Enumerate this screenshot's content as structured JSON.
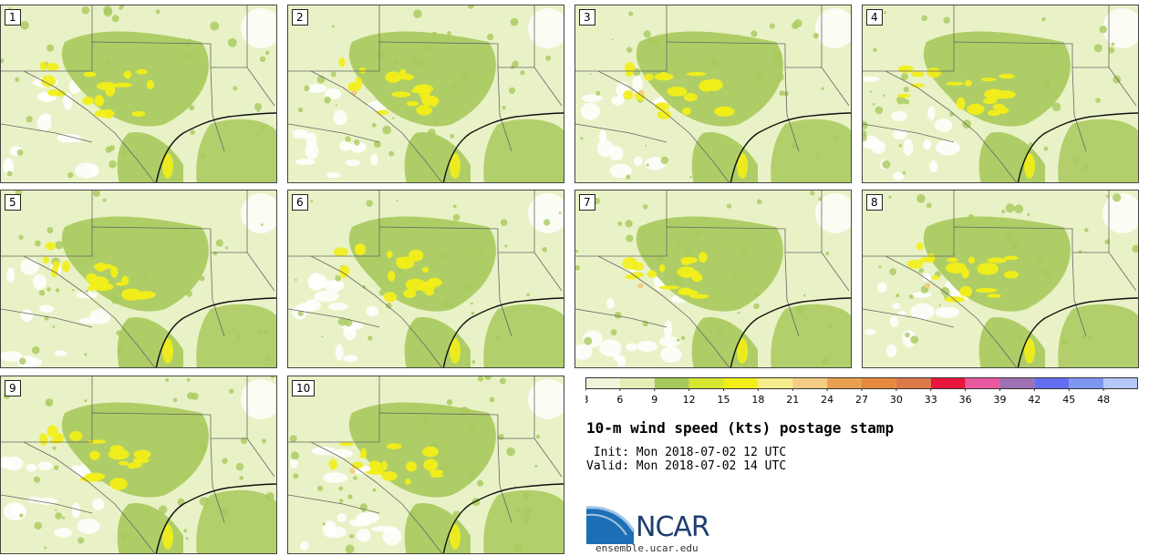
{
  "title": "10-m wind speed (kts) postage stamp",
  "init_text": " Init: Mon 2018-07-02 12 UTC",
  "valid_text": "Valid: Mon 2018-07-02 14 UTC",
  "site": "ensemble.ucar.edu",
  "logo_text": "NCAR",
  "members": [
    "1",
    "2",
    "3",
    "4",
    "5",
    "6",
    "7",
    "8",
    "9",
    "10"
  ],
  "colorbar": {
    "ticks": [
      "3",
      "6",
      "9",
      "12",
      "15",
      "18",
      "21",
      "24",
      "27",
      "30",
      "33",
      "36",
      "39",
      "42",
      "45",
      "48"
    ],
    "colors": [
      "#f0f5dc",
      "#e2eeb6",
      "#a8c95c",
      "#d7e62e",
      "#f2ee18",
      "#f7ec8c",
      "#f4cc84",
      "#e8a050",
      "#e58a3c",
      "#dc7a48",
      "#e8163c",
      "#e85aa0",
      "#9e70b4",
      "#646ef0",
      "#7c96f0",
      "#b4c8fa"
    ]
  },
  "map_colors": {
    "background": "#e9f2c6",
    "moderate": "#a8c95c",
    "strong": "#f2ee18",
    "peak": "#f4cc84",
    "calm": "#ffffff",
    "boundary": "#666666"
  }
}
